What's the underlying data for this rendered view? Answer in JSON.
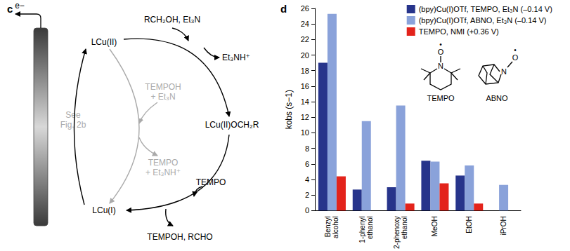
{
  "panel_labels": [
    "c",
    "d"
  ],
  "diagram": {
    "electron": "e−",
    "electrode_note": "See\nFig. 2b",
    "nodes": [
      "LCu(II)",
      "LCu(II)OCH₂R",
      "LCu(I)"
    ],
    "main_in_top": "RCH₂OH, Et₃N",
    "main_out_top": "Et₃NH⁺",
    "main_in_bottom": "TEMPO",
    "main_out_bottom": "TEMPOH, RCHO",
    "side_in": "TEMPOH\n+ Et₃N",
    "side_out": "TEMPO\n+ Et₃NH⁺"
  },
  "structures": [
    {
      "name": "TEMPO",
      "atoms": [
        "N",
        "O",
        "•"
      ]
    },
    {
      "name": "ABNO",
      "atoms": [
        "N",
        "O",
        "•"
      ]
    }
  ],
  "chart_data": {
    "type": "bar",
    "categories": [
      "Benzyl\nalcohol",
      "1-phenyl\nethanol",
      "2-phenoxy\nethanol",
      "MeOH",
      "EtOH",
      "iPrOH"
    ],
    "series": [
      {
        "name": "(bpy)Cu(I)OTf, TEMPO, Et₃N (–0.14 V)",
        "color": "#27348b",
        "values": [
          19.0,
          2.7,
          3.0,
          6.4,
          4.5,
          null
        ]
      },
      {
        "name": "(bpy)Cu(I)OTf, ABNO, Et₃N (–0.14 V)",
        "color": "#8aa2da",
        "values": [
          25.3,
          11.5,
          13.5,
          6.3,
          5.8,
          3.3
        ]
      },
      {
        "name": "TEMPO, NMI (+0.36 V)",
        "color": "#e3231b",
        "values": [
          4.4,
          null,
          0.9,
          3.5,
          0.9,
          null
        ]
      }
    ],
    "y_label": "kobs (s−1)",
    "ylim": [
      0,
      26
    ],
    "yticks": [
      0,
      2,
      4,
      6,
      8,
      10,
      12,
      14,
      16,
      18,
      20,
      22,
      24,
      26
    ],
    "grid": false,
    "legend": "top-right"
  }
}
